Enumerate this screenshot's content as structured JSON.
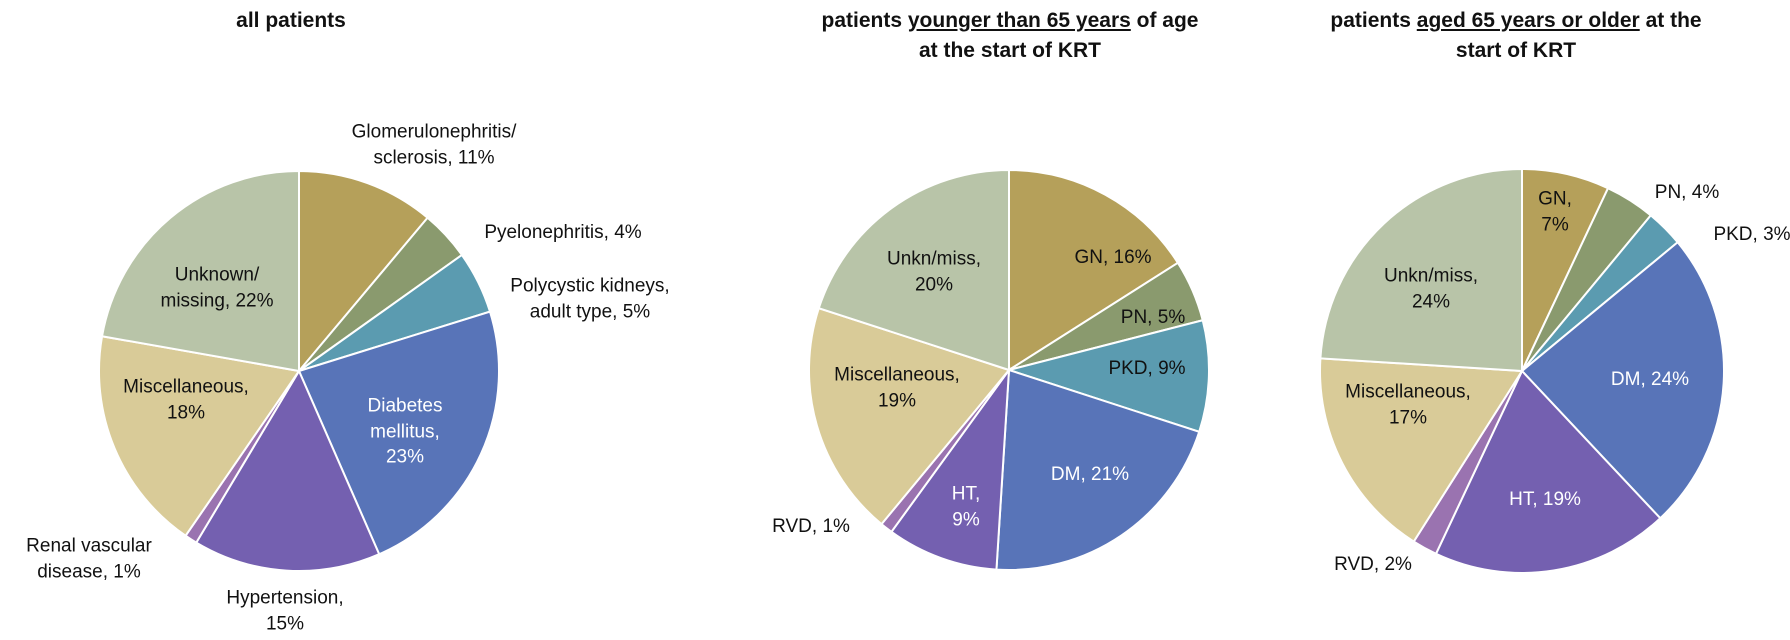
{
  "chart_data": [
    {
      "type": "pie",
      "title": {
        "before": "all patients"
      },
      "categories": [
        "Glomerulonephritis/ sclerosis,",
        "Pyelonephritis,",
        "Polycystic kidneys, adult type,",
        "Diabetes mellitus,",
        "Hypertension,",
        "Renal vascular disease,",
        "Miscellaneous,",
        "Unknown/ missing,"
      ],
      "values": [
        11,
        4,
        5,
        23,
        15,
        1,
        18,
        22
      ],
      "value_labels": [
        "11%",
        "4%",
        "5%",
        "23%",
        "15%",
        "1%",
        "18%",
        "22%"
      ],
      "colors": [
        "#b5a05a",
        "#8a9a6e",
        "#5b9bb0",
        "#5874b8",
        "#7460b0",
        "#9a73b0",
        "#d9cb98",
        "#b8c4a8"
      ]
    },
    {
      "type": "pie",
      "title": {
        "before": "patients",
        "underlined": "younger than 65 years",
        "after": "of age at the start of KRT"
      },
      "categories": [
        "GN,",
        "PN,",
        "PKD,",
        "DM,",
        "HT,",
        "RVD,",
        "Miscellaneous,",
        "Unkn/miss,"
      ],
      "values": [
        16,
        5,
        9,
        21,
        9,
        1,
        19,
        20
      ],
      "value_labels": [
        "16%",
        "5%",
        "9%",
        "21%",
        "9%",
        "1%",
        "19%",
        "20%"
      ],
      "colors": [
        "#b5a05a",
        "#8a9a6e",
        "#5b9bb0",
        "#5874b8",
        "#7460b0",
        "#9a73b0",
        "#d9cb98",
        "#b8c4a8"
      ]
    },
    {
      "type": "pie",
      "title": {
        "before": "patients",
        "underlined": "aged 65 years or older",
        "after": "at the start of KRT"
      },
      "categories": [
        "GN,",
        "PN,",
        "PKD,",
        "DM,",
        "HT,",
        "RVD,",
        "Miscellaneous,",
        "Unkn/miss,"
      ],
      "values": [
        7,
        4,
        3,
        24,
        19,
        2,
        17,
        24
      ],
      "value_labels": [
        "7%",
        "4%",
        "3%",
        "24%",
        "19%",
        "2%",
        "17%",
        "24%"
      ],
      "colors": [
        "#b5a05a",
        "#8a9a6e",
        "#5b9bb0",
        "#5874b8",
        "#7460b0",
        "#9a73b0",
        "#d9cb98",
        "#b8c4a8"
      ]
    }
  ]
}
